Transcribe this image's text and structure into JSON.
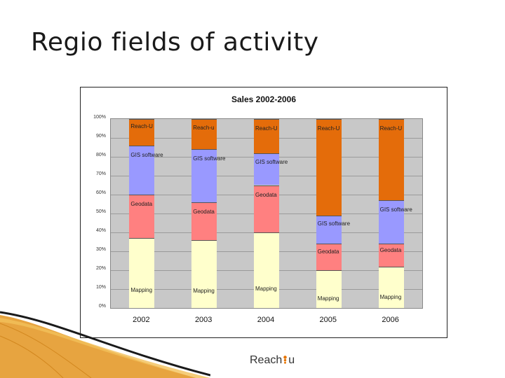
{
  "slide": {
    "title": "Regio fields of activity"
  },
  "logo": {
    "text_left": "Reach",
    "text_right": "u",
    "accent_color": "#e67300"
  },
  "chart_data": {
    "type": "bar",
    "stacked": true,
    "percent_stacked": true,
    "title": "Sales 2002-2006",
    "xlabel": "",
    "ylabel": "",
    "ylim": [
      0,
      100
    ],
    "y_ticks": [
      "0%",
      "10%",
      "20%",
      "30%",
      "40%",
      "50%",
      "60%",
      "70%",
      "80%",
      "90%",
      "100%"
    ],
    "grid": true,
    "categories": [
      "2002",
      "2003",
      "2004",
      "2005",
      "2006"
    ],
    "series": [
      {
        "name": "Mapping",
        "color": "#ffffcc",
        "values": [
          37,
          36,
          40,
          20,
          22
        ],
        "labels": [
          "Mapping",
          "Mapping",
          "Mapping",
          "Mapping",
          "Mapping"
        ]
      },
      {
        "name": "Geodata",
        "color": "#ff8080",
        "values": [
          23,
          20,
          25,
          14,
          12
        ],
        "labels": [
          "Geodata",
          "Geodata",
          "Geodata",
          "Geodata",
          "Geodata"
        ]
      },
      {
        "name": "GIS software",
        "color": "#9999ff",
        "values": [
          26,
          28,
          17,
          15,
          23
        ],
        "labels": [
          "GIS software",
          "GIS software",
          "GIS software",
          "GIS software",
          "GIS software"
        ]
      },
      {
        "name": "Reach-U",
        "color": "#e46c0a",
        "values": [
          14,
          16,
          18,
          51,
          43
        ],
        "labels": [
          "Reach-U",
          "Reach-u",
          "Reach-U",
          "Reach-U",
          "Reach-U"
        ]
      }
    ]
  }
}
